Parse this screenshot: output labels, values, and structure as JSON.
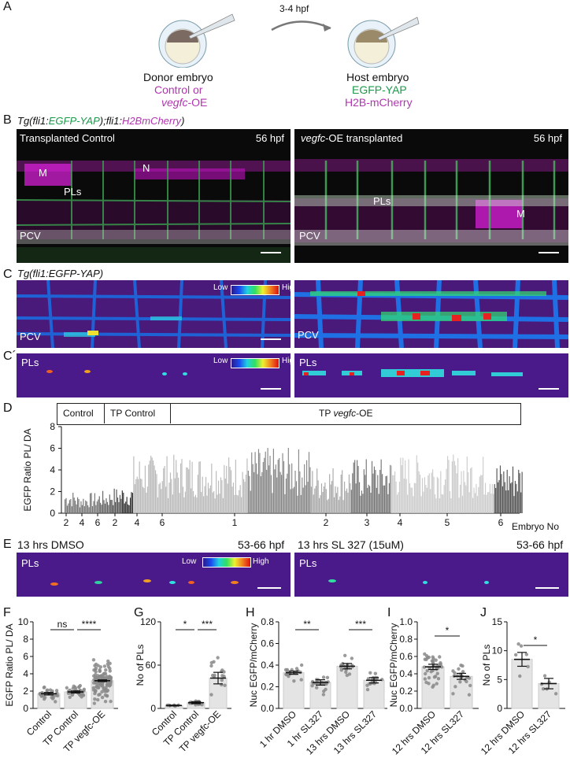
{
  "panelA": {
    "letter": "A",
    "arrow_label": "3-4 hpf",
    "donor_title": "Donor embryo",
    "donor_line2": "Control or",
    "donor_line3_italic": "vegfc",
    "donor_line3_rest": "-OE",
    "host_title": "Host embryo",
    "host_line2": "EGFP-YAP",
    "host_line3": "H2B-mCherry"
  },
  "panelB": {
    "letter": "B",
    "title_part1": "Tg(fli1:",
    "title_part2": "EGFP-YAP",
    "title_part3": ");fli1:",
    "title_part4": "H2BmCherry",
    "title_part5": ")",
    "left_label": "Transplanted Control",
    "left_time": "56 hpf",
    "right_label_italic": "vegfc",
    "right_label_rest": "-OE transplanted",
    "right_time": "56 hpf",
    "ann_M": "M",
    "ann_N": "N",
    "ann_PLs": "PLs",
    "ann_PCV": "PCV"
  },
  "panelC": {
    "letter": "C",
    "title": "Tg(fli1:EGFP-YAP)",
    "low": "Low",
    "high": "High",
    "pcv": "PCV"
  },
  "panelC2": {
    "letter": "C´",
    "pls": "PLs",
    "low": "Low",
    "high": "High"
  },
  "panelD": {
    "letter": "D",
    "ylabel": "EGFP Ratio PL/ DA",
    "yticks": [
      "0",
      "2",
      "4",
      "6",
      "8"
    ],
    "group_control": "Control",
    "group_tp_control": "TP Control",
    "group_tp_vegfc_prefix": "TP ",
    "group_tp_vegfc_italic": "vegfc",
    "group_tp_vegfc_suffix": "-OE",
    "xlabel": "Embryo No",
    "embryo_labels": [
      "2",
      "4",
      "6",
      "2",
      "4",
      "6",
      "1",
      "2",
      "3",
      "4",
      "5",
      "6"
    ]
  },
  "panelE": {
    "letter": "E",
    "left_label": "13 hrs DMSO",
    "left_time": "53-66 hpf",
    "right_label": "13 hrs SL 327 (15uM)",
    "right_time": "53-66 hpf",
    "pls": "PLs",
    "low": "Low",
    "high": "High"
  },
  "chart_data": [
    {
      "type": "bar",
      "panel": "D",
      "ylabel": "EGFP Ratio PL/ DA",
      "ylim": [
        0,
        8
      ],
      "xlabel": "Embryo No",
      "groups": [
        {
          "name": "Control",
          "embryos": [
            "2",
            "4",
            "6"
          ]
        },
        {
          "name": "TP Control",
          "embryos": [
            "2",
            "4",
            "6"
          ]
        },
        {
          "name": "TP vegfc-OE",
          "embryos": [
            "1",
            "2",
            "3",
            "4",
            "5",
            "6"
          ]
        }
      ]
    },
    {
      "type": "bar",
      "panel": "F",
      "categories": [
        "Control",
        "TP Control",
        "TP vegfc-OE"
      ],
      "values": [
        1.7,
        1.9,
        3.2
      ],
      "errors": [
        0.15,
        0.12,
        0.1
      ],
      "ylabel": "EGFP Ratio PL/ DA",
      "ylim": [
        0,
        10
      ],
      "yticks": [
        "0",
        "2",
        "4",
        "6",
        "8",
        "10"
      ],
      "significance": [
        {
          "from": 0,
          "to": 1,
          "label": "ns"
        },
        {
          "from": 1,
          "to": 2,
          "label": "****"
        }
      ]
    },
    {
      "type": "bar",
      "panel": "G",
      "categories": [
        "Control",
        "TP Control",
        "TP vegfc-OE"
      ],
      "values": [
        4,
        8,
        42
      ],
      "errors": [
        0.6,
        1.5,
        8
      ],
      "ylabel": "No of PLs",
      "ylim": [
        0,
        120
      ],
      "yticks": [
        "0",
        "60",
        "120"
      ],
      "significance": [
        {
          "from": 0,
          "to": 1,
          "label": "*"
        },
        {
          "from": 1,
          "to": 2,
          "label": "***"
        }
      ]
    },
    {
      "type": "bar",
      "panel": "H",
      "categories": [
        "1 hr DMSO",
        "1 hr SL327",
        "13 hrs DMSO",
        "13 hrs SL327"
      ],
      "values": [
        0.33,
        0.24,
        0.39,
        0.26
      ],
      "errors": [
        0.015,
        0.025,
        0.025,
        0.025
      ],
      "ylabel": "Nuc EGFP/mCherry",
      "ylim": [
        0,
        0.8
      ],
      "yticks": [
        "0.0",
        "0.2",
        "0.4",
        "0.6",
        "0.8"
      ],
      "significance": [
        {
          "from": 0,
          "to": 1,
          "label": "**"
        },
        {
          "from": 2,
          "to": 3,
          "label": "***"
        }
      ]
    },
    {
      "type": "bar",
      "panel": "I",
      "categories": [
        "12 hrs DMSO",
        "12 hrs SL327"
      ],
      "values": [
        0.48,
        0.37
      ],
      "errors": [
        0.03,
        0.035
      ],
      "ylabel": "Nuc EGFP/mCherry",
      "ylim": [
        0,
        1.0
      ],
      "yticks": [
        "0.0",
        "0.2",
        "0.4",
        "0.6",
        "0.8",
        "1.0"
      ],
      "significance": [
        {
          "from": 0,
          "to": 1,
          "label": "*"
        }
      ]
    },
    {
      "type": "bar",
      "panel": "J",
      "categories": [
        "12 hrs DMSO",
        "12 hrs SL327"
      ],
      "values": [
        8.5,
        4.3
      ],
      "errors": [
        1.2,
        0.9
      ],
      "ylabel": "No of PLs",
      "ylim": [
        0,
        15
      ],
      "yticks": [
        "0",
        "5",
        "10",
        "15"
      ],
      "significance": [
        {
          "from": 0,
          "to": 1,
          "label": "*"
        }
      ]
    }
  ],
  "panel_letters": {
    "F": "F",
    "G": "G",
    "H": "H",
    "I": "I",
    "J": "J"
  }
}
